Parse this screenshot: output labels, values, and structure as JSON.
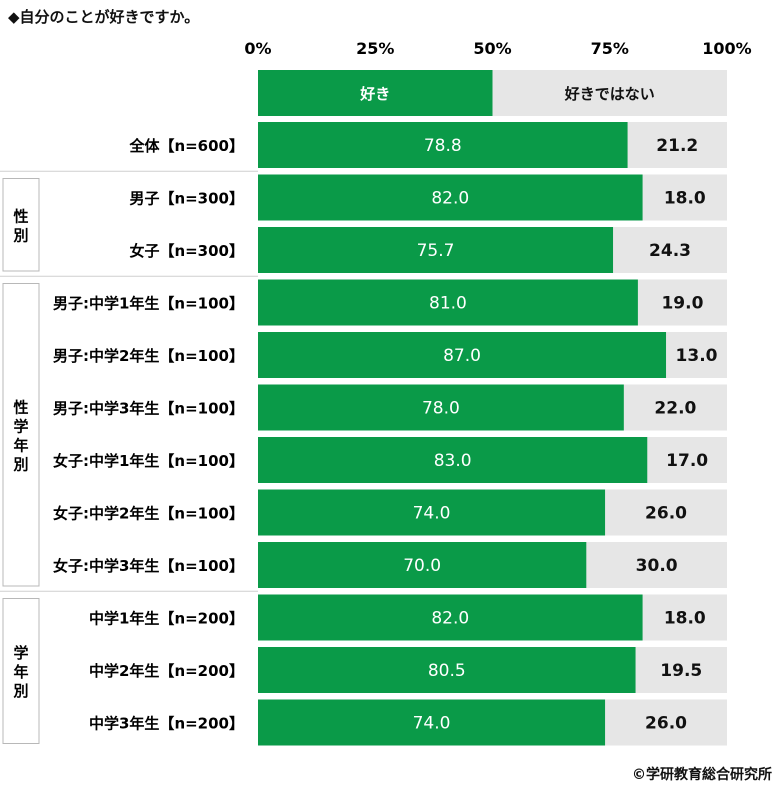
{
  "title": "◆自分のことが好きですか。",
  "credit": "©学研教育総合研究所",
  "colors": {
    "good": "#0a9a48",
    "bad": "#e6e6e6",
    "grid": "#cfcfcf"
  },
  "chart_data": {
    "type": "bar",
    "orientation": "horizontal",
    "stacked": true,
    "xlim": [
      0,
      100
    ],
    "x_ticks": [
      "0%",
      "25%",
      "50%",
      "75%",
      "100%"
    ],
    "legend": {
      "placement": "top",
      "entries": [
        "好き",
        "好きではない"
      ]
    },
    "categories": [
      "全体【n=600】",
      "男子【n=300】",
      "女子【n=300】",
      "男子:中学1年生【n=100】",
      "男子:中学2年生【n=100】",
      "男子:中学3年生【n=100】",
      "女子:中学1年生【n=100】",
      "女子:中学2年生【n=100】",
      "女子:中学3年生【n=100】",
      "中学1年生【n=200】",
      "中学2年生【n=200】",
      "中学3年生【n=200】"
    ],
    "series": [
      {
        "name": "好き",
        "values": [
          "78.8",
          "82.0",
          "75.7",
          "81.0",
          "87.0",
          "78.0",
          "83.0",
          "74.0",
          "70.0",
          "82.0",
          "80.5",
          "74.0"
        ]
      },
      {
        "name": "好きではない",
        "values": [
          "21.2",
          "18.0",
          "24.3",
          "19.0",
          "13.0",
          "22.0",
          "17.0",
          "26.0",
          "30.0",
          "18.0",
          "19.5",
          "26.0"
        ]
      }
    ],
    "groups": [
      {
        "label": "性別",
        "rows": [
          1,
          2
        ]
      },
      {
        "label": "性学年別",
        "rows": [
          3,
          8
        ]
      },
      {
        "label": "学年別",
        "rows": [
          9,
          11
        ]
      }
    ]
  }
}
